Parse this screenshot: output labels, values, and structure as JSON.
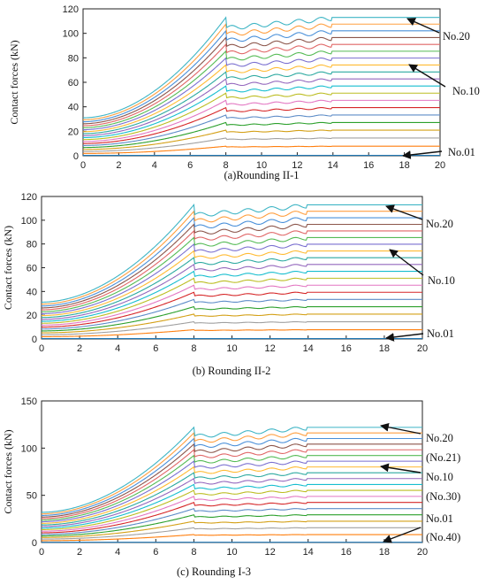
{
  "chart_data": [
    {
      "type": "line",
      "caption": "(a)Rounding II-1",
      "ylabel": "Contact forces (kN)",
      "xlim": [
        0,
        20
      ],
      "ylim": [
        0,
        120
      ],
      "xticks": [
        "0",
        "2",
        "4",
        "6",
        "8",
        "10",
        "12",
        "14",
        "16",
        "18",
        "20"
      ],
      "yticks": [
        "0",
        "20",
        "40",
        "60",
        "80",
        "100",
        "120"
      ],
      "n_series": 20,
      "series_start_range": [
        0.3,
        31
      ],
      "series_final_range": [
        0.3,
        113
      ],
      "annotations": [
        {
          "label": "No.20",
          "x": 18,
          "y": 113
        },
        {
          "label": "No.10",
          "x": 18,
          "y": 76
        },
        {
          "label": "No.01",
          "x": 18,
          "y": 0.5
        }
      ]
    },
    {
      "type": "line",
      "caption": "(b) Rounding II-2",
      "ylabel": "Contact forces (kN)",
      "xlim": [
        0,
        20
      ],
      "ylim": [
        0,
        120
      ],
      "xticks": [
        "0",
        "2",
        "4",
        "6",
        "8",
        "10",
        "12",
        "14",
        "16",
        "18",
        "20"
      ],
      "yticks": [
        "0",
        "20",
        "40",
        "60",
        "80",
        "100",
        "120"
      ],
      "n_series": 20,
      "series_start_range": [
        0.3,
        31
      ],
      "series_final_range": [
        0.3,
        113
      ],
      "annotations": [
        {
          "label": "No.20",
          "x": 18,
          "y": 110
        },
        {
          "label": "No.10",
          "x": 18,
          "y": 77
        },
        {
          "label": "No.01",
          "x": 18,
          "y": 0.5
        }
      ]
    },
    {
      "type": "line",
      "caption": "(c) Rounding I-3",
      "ylabel": "Contact forces (kN)",
      "xlim": [
        0,
        20
      ],
      "ylim": [
        0,
        150
      ],
      "xticks": [
        "0",
        "2",
        "4",
        "6",
        "8",
        "10",
        "12",
        "14",
        "16",
        "18",
        "20"
      ],
      "yticks": [
        "0",
        "50",
        "100",
        "150"
      ],
      "n_series": 20,
      "series_start_range": [
        0.3,
        32
      ],
      "series_final_range": [
        0.3,
        122
      ],
      "annotations": [
        {
          "label": "No.20",
          "sublabel": "(No.21)",
          "x": 18,
          "y": 121
        },
        {
          "label": "No.10",
          "sublabel": "(No.30)",
          "x": 18,
          "y": 82
        },
        {
          "label": "No.01",
          "sublabel": "(No.40)",
          "x": 18,
          "y": 1
        }
      ]
    }
  ],
  "colors": [
    "#1f77b4",
    "#ff7f0e",
    "#a0a0a0",
    "#d4a017",
    "#2ca02c",
    "#5d8cc7",
    "#d62728",
    "#e377c2",
    "#bcbd22",
    "#17becf",
    "#9467bd",
    "#2ca9a0",
    "#ffbb33",
    "#7a6fd0",
    "#55bb55",
    "#e06666",
    "#8c564b",
    "#4a90d9",
    "#ff9f40",
    "#3fb5c5"
  ]
}
